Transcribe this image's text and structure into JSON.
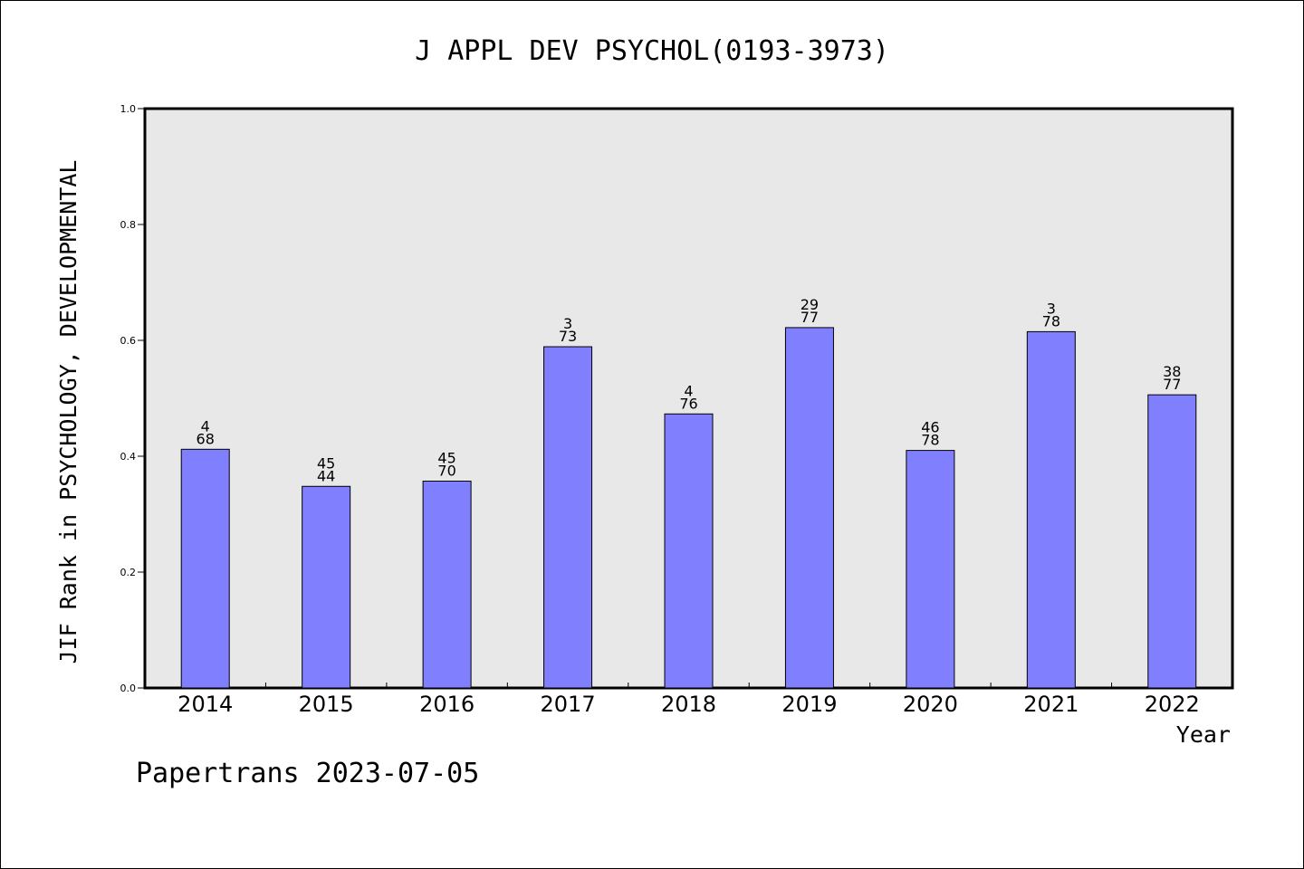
{
  "chart_data": {
    "type": "bar",
    "title": "J APPL DEV PSYCHOL(0193-3973)",
    "xlabel": "Year",
    "ylabel": "JIF Rank in PSYCHOLOGY, DEVELOPMENTAL",
    "categories": [
      "2014",
      "2015",
      "2016",
      "2017",
      "2018",
      "2019",
      "2020",
      "2021",
      "2022"
    ],
    "values": [
      0.412,
      0.348,
      0.357,
      0.589,
      0.473,
      0.622,
      0.41,
      0.615,
      0.506
    ],
    "label_top": [
      "4",
      "45",
      "45",
      "3",
      "4",
      "29",
      "46",
      "3",
      "38"
    ],
    "label_bottom": [
      "68",
      "44",
      "70",
      "73",
      "76",
      "77",
      "78",
      "78",
      "77"
    ],
    "ylim": [
      0,
      1.0
    ],
    "yticks": [
      "0.0",
      "0.2",
      "0.4",
      "0.6",
      "0.8",
      "1.0"
    ],
    "grid": false,
    "bar_color": "#8080ff",
    "plot_background": "#e8e8e8"
  },
  "footer": "Papertrans 2023-07-05"
}
